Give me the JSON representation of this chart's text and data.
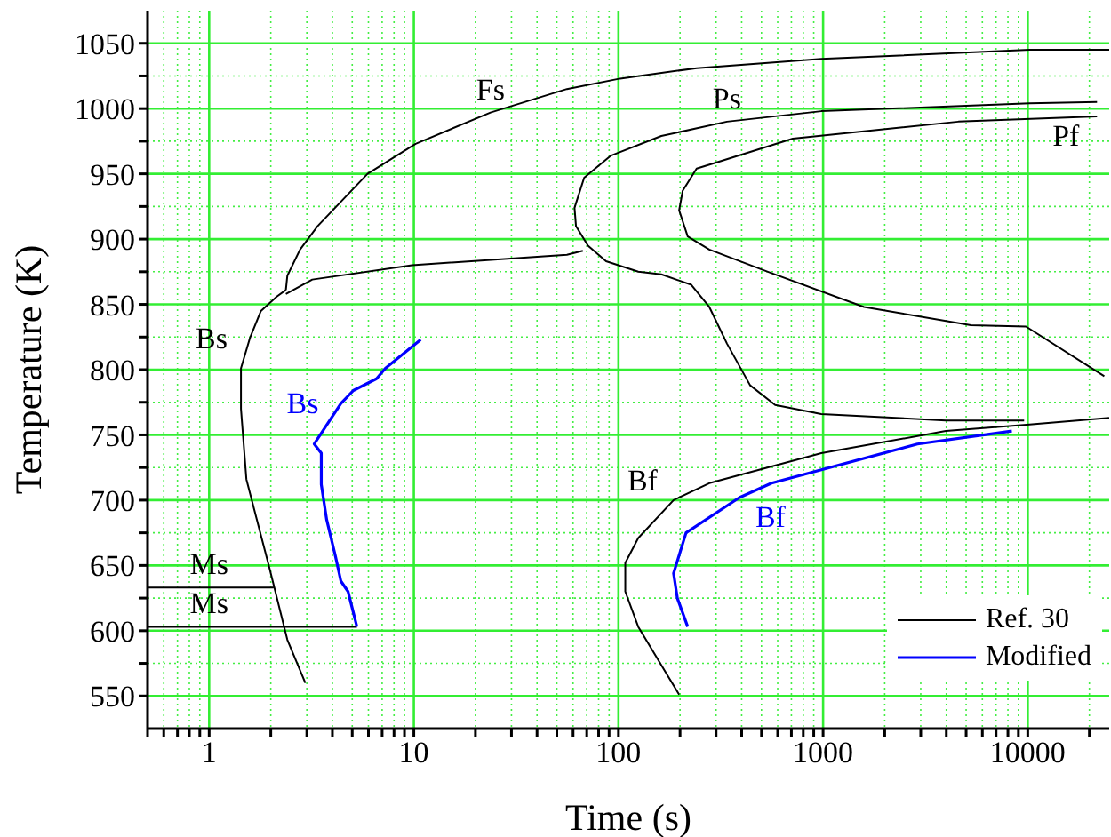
{
  "chart_data": {
    "type": "line",
    "xlabel": "Time (s)",
    "ylabel": "Temperature (K)",
    "log": "x",
    "grid": true,
    "legend": "bottom right",
    "marker": "none",
    "line_style": "solid",
    "xlim": [
      0.5,
      25000
    ],
    "ylim": [
      525,
      1075
    ],
    "xticks": [
      {
        "value": 0.5,
        "label": null
      },
      {
        "value": 0.6,
        "label": null
      },
      {
        "value": 0.7,
        "label": null
      },
      {
        "value": 0.8,
        "label": null
      },
      {
        "value": 0.9,
        "label": null
      },
      1,
      {
        "value": 2,
        "label": null
      },
      {
        "value": 3,
        "label": null
      },
      {
        "value": 4,
        "label": null
      },
      {
        "value": 5,
        "label": null
      },
      {
        "value": 6,
        "label": null
      },
      {
        "value": 7,
        "label": null
      },
      {
        "value": 8,
        "label": null
      },
      {
        "value": 9,
        "label": null
      },
      10,
      {
        "value": 20,
        "label": null
      },
      {
        "value": 30,
        "label": null
      },
      {
        "value": 40,
        "label": null
      },
      {
        "value": 50,
        "label": null
      },
      {
        "value": 60,
        "label": null
      },
      {
        "value": 70,
        "label": null
      },
      {
        "value": 80,
        "label": null
      },
      {
        "value": 90,
        "label": null
      },
      100,
      {
        "value": 200,
        "label": null
      },
      {
        "value": 300,
        "label": null
      },
      {
        "value": 400,
        "label": null
      },
      {
        "value": 500,
        "label": null
      },
      {
        "value": 600,
        "label": null
      },
      {
        "value": 700,
        "label": null
      },
      {
        "value": 800,
        "label": null
      },
      {
        "value": 900,
        "label": null
      },
      1000,
      {
        "value": 2000,
        "label": null
      },
      {
        "value": 3000,
        "label": null
      },
      {
        "value": 4000,
        "label": null
      },
      {
        "value": 5000,
        "label": null
      },
      {
        "value": 6000,
        "label": null
      },
      {
        "value": 7000,
        "label": null
      },
      {
        "value": 8000,
        "label": null
      },
      {
        "value": 9000,
        "label": null
      },
      10000,
      {
        "value": 20000,
        "label": null
      }
    ],
    "yticks": [
      550,
      {
        "value": 575,
        "label": null
      },
      600,
      {
        "value": 625,
        "label": null
      },
      650,
      {
        "value": 675,
        "label": null
      },
      700,
      {
        "value": 725,
        "label": null
      },
      750,
      {
        "value": 775,
        "label": null
      },
      800,
      {
        "value": 825,
        "label": null
      },
      850,
      {
        "value": 875,
        "label": null
      },
      900,
      {
        "value": 925,
        "label": null
      },
      950,
      {
        "value": 975,
        "label": null
      },
      1000,
      {
        "value": 1025,
        "label": null
      },
      1050
    ],
    "series": [
      {
        "name": "Ref. 30",
        "color": "#000000",
        "x": [
          2.37,
          2.41,
          2.78,
          3.39,
          5.94,
          10.2,
          23.7,
          56,
          102,
          241,
          980,
          10200,
          25000,
          null,
          21800,
          10200,
          980,
          339,
          162,
          92,
          68,
          61,
          62,
          71,
          87,
          125,
          162,
          227,
          278,
          339,
          440,
          583,
          980,
          3980,
          9600,
          null,
          23650,
          9800,
          5270,
          1585,
          537,
          278,
          218,
          198,
          206,
          241,
          320,
          711,
          4580,
          21800,
          null,
          2.37,
          3.19,
          9.8,
          56,
          67,
          null,
          2.37,
          2.14,
          1.79,
          1.58,
          1.43,
          1.43,
          1.52,
          1.75,
          1.97,
          2.41,
          2.95,
          null,
          0.5,
          2.06,
          null,
          0.5,
          5.27,
          null,
          198,
          125,
          108,
          108,
          125,
          186,
          278,
          980,
          3980,
          10200,
          25000
        ],
        "values": [
          861,
          872,
          892,
          910,
          950,
          973,
          997,
          1015,
          1023,
          1031,
          1038,
          1045,
          1045,
          null,
          1005,
          1004,
          998,
          990,
          979,
          964,
          947,
          924,
          910,
          895,
          883,
          875,
          873,
          865,
          848,
          820,
          788,
          773,
          766,
          761,
          761,
          null,
          795,
          833,
          834,
          848,
          875,
          892,
          902,
          922,
          937,
          954,
          960,
          977,
          990,
          994,
          null,
          858,
          869,
          880,
          888,
          891,
          null,
          861,
          856,
          845,
          824,
          801,
          770,
          716,
          679,
          648,
          593,
          560,
          null,
          633,
          633,
          null,
          603,
          603,
          null,
          551,
          603,
          630,
          652,
          671,
          700,
          713,
          736,
          753,
          758,
          763
        ]
      },
      {
        "name": "Modified",
        "color": "#0000ff",
        "x": [
          10.8,
          7.26,
          6.57,
          5.06,
          4.4,
          3.26,
          3.53,
          3.53,
          3.75,
          4.14,
          4.4,
          4.77,
          5.27,
          null,
          218,
          194,
          186,
          214,
          390,
          560,
          2890,
          8360
        ],
        "values": [
          823,
          801,
          793,
          784,
          774,
          743,
          736,
          712,
          685,
          657,
          638,
          630,
          603,
          null,
          603,
          625,
          644,
          675,
          702,
          713,
          743,
          753
        ]
      }
    ],
    "annotations": [
      {
        "text": "Fs",
        "x": 23.7,
        "y": 997
      },
      {
        "text": "Ps",
        "x": 339,
        "y": 990
      },
      {
        "text": "Pf",
        "x": 21800,
        "y": 994
      },
      {
        "text": "Bs",
        "x": 1.58,
        "y": 824
      },
      {
        "text": "Bs",
        "x": 4.4,
        "y": 774
      },
      {
        "text": "Bf",
        "x": 186,
        "y": 700
      },
      {
        "text": "Bf",
        "x": 390,
        "y": 702
      },
      {
        "text": "Ms",
        "x": 1,
        "y": 633
      },
      {
        "text": "Ms",
        "x": 1,
        "y": 603
      }
    ]
  }
}
